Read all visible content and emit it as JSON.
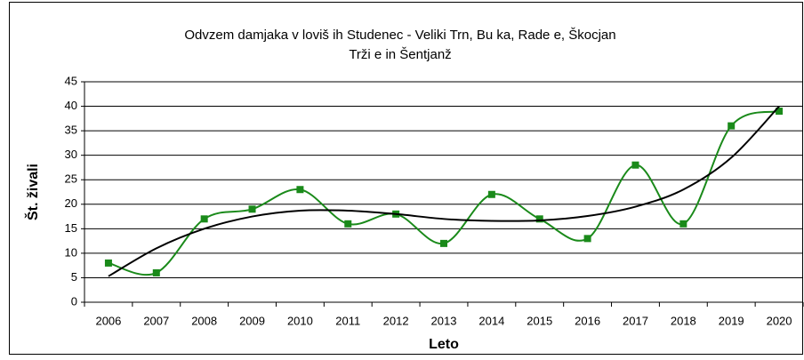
{
  "chart_data": {
    "type": "line",
    "title": [
      "Odvzem damjaka v loviš ih Studenec - Veliki Trn, Bu ka, Rade e, Škocjan",
      "Trži e in Šentjanž"
    ],
    "xlabel": "Leto",
    "ylabel": "Št. živali",
    "categories": [
      "2006",
      "2007",
      "2008",
      "2009",
      "2010",
      "2011",
      "2012",
      "2013",
      "2014",
      "2015",
      "2016",
      "2017",
      "2018",
      "2019",
      "2020"
    ],
    "series": [
      {
        "color": "#1a8a1a",
        "smooth": true,
        "markers": true,
        "values": [
          8,
          6,
          17,
          19,
          23,
          16,
          18,
          12,
          22,
          17,
          13,
          28,
          16,
          36,
          39
        ]
      },
      {
        "color": "#000000",
        "smooth": true,
        "markers": false,
        "values": [
          5.3,
          11,
          15,
          17.5,
          18.7,
          18.7,
          18,
          17,
          16.6,
          16.7,
          17.6,
          19.5,
          23,
          29.5,
          40
        ]
      }
    ],
    "ylim": [
      0,
      45
    ],
    "yticks": [
      0,
      5,
      10,
      15,
      20,
      25,
      30,
      35,
      40,
      45
    ],
    "grid": true
  }
}
